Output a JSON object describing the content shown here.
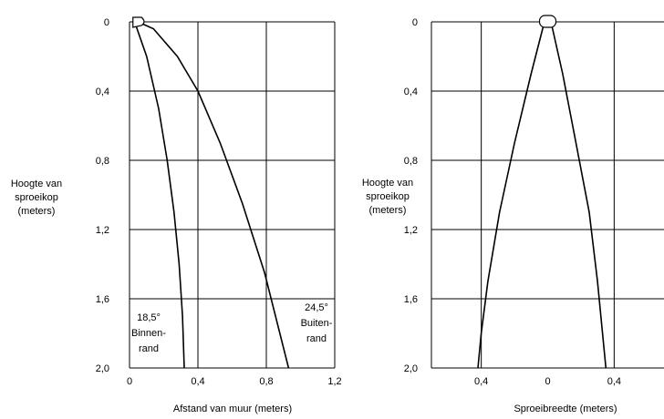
{
  "chart_data": [
    {
      "type": "line",
      "title": "",
      "xlabel": "Afstand van muur (meters)",
      "ylabel": [
        "Hoogte van",
        "sproeikop",
        "(meters)"
      ],
      "xlim": [
        0,
        1.2
      ],
      "ylim": [
        0,
        2.0
      ],
      "y_inverted": true,
      "grid": true,
      "x_ticks": [
        "0",
        "0,4",
        "0,8",
        "1,2"
      ],
      "y_ticks": [
        "0",
        "0,4",
        "0,8",
        "1,2",
        "1,6",
        "2,0"
      ],
      "series": [
        {
          "name": "Binnenrand",
          "x": [
            0.03,
            0.1,
            0.17,
            0.22,
            0.26,
            0.29,
            0.31,
            0.32
          ],
          "y": [
            0.0,
            0.2,
            0.5,
            0.8,
            1.1,
            1.4,
            1.7,
            2.0
          ]
        },
        {
          "name": "Buitenrand",
          "x": [
            0.05,
            0.14,
            0.28,
            0.4,
            0.53,
            0.66,
            0.79,
            0.93
          ],
          "y": [
            0.0,
            0.04,
            0.2,
            0.4,
            0.7,
            1.05,
            1.45,
            2.0
          ]
        }
      ],
      "annotations": [
        {
          "id": "inner",
          "lines": [
            "18,5°",
            "Binnen-",
            "rand"
          ]
        },
        {
          "id": "outer",
          "lines": [
            "24,5°",
            "Buiten-",
            "rand"
          ]
        }
      ]
    },
    {
      "type": "line",
      "title": "",
      "xlabel": "Sproeibreedte (meters)",
      "ylabel": [
        "Hoogte van",
        "sproeikop",
        "(meters)"
      ],
      "xlim": [
        -0.7,
        0.7
      ],
      "ylim": [
        0,
        2.0
      ],
      "y_inverted": true,
      "grid": true,
      "x_ticks": [
        "0,4",
        "0",
        "0,4"
      ],
      "y_ticks": [
        "0",
        "0,4",
        "0,8",
        "1,2",
        "1,6",
        "2,0"
      ],
      "series": [
        {
          "name": "",
          "x": [
            -0.02,
            -0.1,
            -0.2,
            -0.29,
            -0.36,
            -0.4,
            -0.42
          ],
          "y": [
            0.0,
            0.3,
            0.7,
            1.1,
            1.5,
            1.8,
            2.0
          ]
        },
        {
          "name": "",
          "x": [
            0.02,
            0.09,
            0.17,
            0.25,
            0.3,
            0.33,
            0.35
          ],
          "y": [
            0.0,
            0.3,
            0.7,
            1.1,
            1.5,
            1.8,
            2.0
          ]
        }
      ]
    }
  ]
}
